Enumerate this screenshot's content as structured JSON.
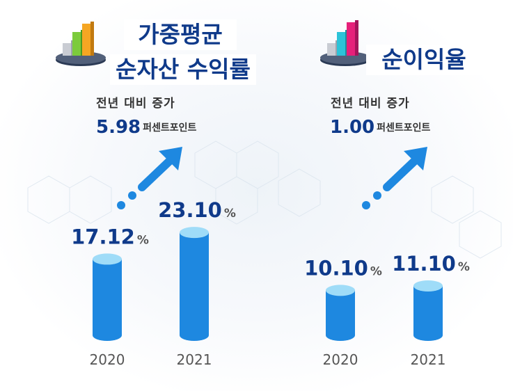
{
  "chart_data": [
    {
      "type": "bar",
      "title": "가중평균 순자산 수익률",
      "subtitle": "전년 대비 증가",
      "change_value": "5.98",
      "change_unit": "퍼센트포인트",
      "categories": [
        "2020",
        "2021"
      ],
      "values": [
        17.12,
        23.1
      ],
      "value_labels": [
        "17.12",
        "23.10"
      ],
      "value_suffix": "%",
      "ylim": [
        0,
        25
      ],
      "grid": false,
      "legend": "none"
    },
    {
      "type": "bar",
      "title": "순이익율",
      "subtitle": "전년 대비 증가",
      "change_value": "1.00",
      "change_unit": "퍼센트포인트",
      "categories": [
        "2020",
        "2021"
      ],
      "values": [
        10.1,
        11.1
      ],
      "value_labels": [
        "10.10",
        "11.10"
      ],
      "value_suffix": "%",
      "ylim": [
        0,
        25
      ],
      "grid": false,
      "legend": "none"
    }
  ],
  "colors": {
    "title": "#0f3a8a",
    "bar_body": "#1e88e0",
    "bar_top": "#9fdcf8",
    "arrow": "#1e88e0",
    "axis_text": "#555555"
  }
}
